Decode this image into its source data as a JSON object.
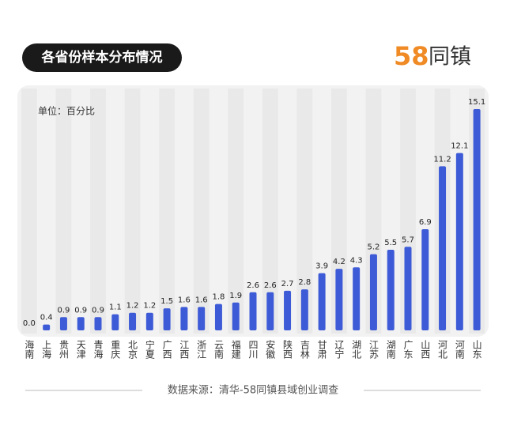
{
  "chart_data": {
    "type": "bar",
    "title": "各省份样本分布情况",
    "unit_label": "单位：百分比",
    "logo": {
      "number": "58",
      "name": "同镇"
    },
    "source": "数据来源：清华-58同镇县域创业调查",
    "categories": [
      "海南",
      "上海",
      "贵州",
      "天津",
      "青海",
      "重庆",
      "北京",
      "宁夏",
      "广西",
      "江西",
      "浙江",
      "云南",
      "福建",
      "四川",
      "安徽",
      "陕西",
      "吉林",
      "甘肃",
      "辽宁",
      "湖北",
      "江苏",
      "湖南",
      "广东",
      "山西",
      "河北",
      "河南",
      "山东"
    ],
    "values": [
      0.0,
      0.4,
      0.9,
      0.9,
      0.9,
      1.1,
      1.2,
      1.2,
      1.5,
      1.6,
      1.6,
      1.8,
      1.9,
      2.6,
      2.6,
      2.7,
      2.8,
      3.9,
      4.2,
      4.3,
      5.2,
      5.5,
      5.7,
      6.9,
      11.2,
      12.1,
      15.1
    ],
    "value_labels": [
      "0.0",
      "0.4",
      "0.9",
      "0.9",
      "0.9",
      "1.1",
      "1.2",
      "1.2",
      "1.5",
      "1.6",
      "1.6",
      "1.8",
      "1.9",
      "2.6",
      "2.6",
      "2.7",
      "2.8",
      "3.9",
      "4.2",
      "4.3",
      "5.2",
      "5.5",
      "5.7",
      "6.9",
      "11.2",
      "12.1",
      "15.1"
    ],
    "color": "#3d5bd6"
  }
}
